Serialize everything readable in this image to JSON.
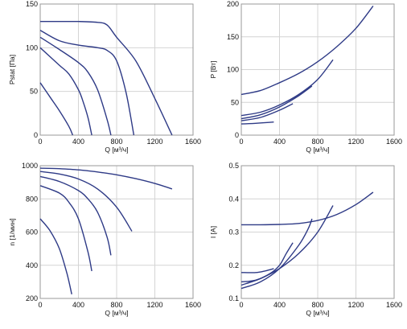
{
  "chart_data": [
    {
      "type": "line",
      "xlabel": "Q [м³/ч]",
      "ylabel": "Pstat [Па]",
      "xlim": [
        0,
        1600
      ],
      "ylim": [
        0,
        150
      ],
      "xticks": [
        0,
        400,
        800,
        1200,
        1600
      ],
      "yticks": [
        0,
        50,
        100,
        150
      ],
      "grid": true,
      "series": [
        {
          "x": [
            0,
            200,
            400,
            600,
            700,
            800,
            1000,
            1200,
            1380
          ],
          "y": [
            130,
            130,
            130,
            129,
            126,
            112,
            85,
            42,
            0
          ]
        },
        {
          "x": [
            0,
            200,
            400,
            600,
            700,
            800,
            900,
            980
          ],
          "y": [
            120,
            108,
            103,
            100,
            97,
            85,
            48,
            0
          ]
        },
        {
          "x": [
            0,
            200,
            400,
            500,
            600,
            700,
            740
          ],
          "y": [
            112,
            98,
            83,
            72,
            52,
            18,
            0
          ]
        },
        {
          "x": [
            0,
            200,
            300,
            400,
            450,
            500,
            540
          ],
          "y": [
            100,
            80,
            70,
            52,
            38,
            20,
            0
          ]
        },
        {
          "x": [
            0,
            100,
            200,
            300,
            340
          ],
          "y": [
            60,
            44,
            28,
            10,
            0
          ]
        }
      ]
    },
    {
      "type": "line",
      "xlabel": "Q [м³/ч]",
      "ylabel": "P [Вт]",
      "xlim": [
        0,
        1600
      ],
      "ylim": [
        0,
        200
      ],
      "xticks": [
        0,
        400,
        800,
        1200,
        1600
      ],
      "yticks": [
        0,
        50,
        100,
        150,
        200
      ],
      "grid": true,
      "series": [
        {
          "x": [
            0,
            200,
            400,
            600,
            800,
            1000,
            1200,
            1380
          ],
          "y": [
            62,
            68,
            80,
            94,
            112,
            135,
            163,
            197
          ]
        },
        {
          "x": [
            0,
            200,
            400,
            600,
            800,
            960
          ],
          "y": [
            30,
            35,
            46,
            62,
            85,
            115
          ]
        },
        {
          "x": [
            0,
            200,
            400,
            600,
            740
          ],
          "y": [
            25,
            31,
            43,
            60,
            75
          ]
        },
        {
          "x": [
            0,
            200,
            400,
            540
          ],
          "y": [
            22,
            27,
            38,
            48
          ]
        },
        {
          "x": [
            0,
            150,
            340
          ],
          "y": [
            17,
            18,
            20
          ]
        }
      ]
    },
    {
      "type": "line",
      "xlabel": "Q [м³/ч]",
      "ylabel": "n [1/мин]",
      "xlim": [
        0,
        1600
      ],
      "ylim": [
        200,
        1000
      ],
      "xticks": [
        0,
        400,
        800,
        1200,
        1600
      ],
      "yticks": [
        200,
        400,
        600,
        800,
        1000
      ],
      "grid": true,
      "series": [
        {
          "x": [
            0,
            200,
            400,
            600,
            800,
            1000,
            1200,
            1380
          ],
          "y": [
            985,
            982,
            975,
            962,
            945,
            922,
            893,
            860
          ]
        },
        {
          "x": [
            0,
            200,
            400,
            600,
            800,
            960
          ],
          "y": [
            965,
            950,
            920,
            860,
            750,
            605
          ]
        },
        {
          "x": [
            0,
            200,
            400,
            500,
            600,
            700,
            740
          ],
          "y": [
            935,
            905,
            850,
            800,
            720,
            570,
            460
          ]
        },
        {
          "x": [
            0,
            200,
            300,
            400,
            500,
            540
          ],
          "y": [
            880,
            835,
            780,
            680,
            480,
            365
          ]
        },
        {
          "x": [
            0,
            100,
            200,
            280,
            330
          ],
          "y": [
            680,
            610,
            500,
            350,
            225
          ]
        }
      ]
    },
    {
      "type": "line",
      "xlabel": "Q [м³/ч]",
      "ylabel": "I [A]",
      "xlim": [
        0,
        1600
      ],
      "ylim": [
        0.1,
        0.5
      ],
      "xticks": [
        0,
        400,
        800,
        1200,
        1600
      ],
      "yticks": [
        0.1,
        0.2,
        0.3,
        0.4,
        0.5
      ],
      "grid": true,
      "series": [
        {
          "x": [
            0,
            200,
            400,
            600,
            800,
            1000,
            1200,
            1380
          ],
          "y": [
            0.322,
            0.322,
            0.323,
            0.326,
            0.335,
            0.353,
            0.383,
            0.42
          ]
        },
        {
          "x": [
            0,
            200,
            400,
            600,
            800,
            960
          ],
          "y": [
            0.14,
            0.16,
            0.19,
            0.235,
            0.3,
            0.38
          ]
        },
        {
          "x": [
            0,
            200,
            400,
            600,
            700,
            740
          ],
          "y": [
            0.13,
            0.15,
            0.19,
            0.26,
            0.31,
            0.34
          ]
        },
        {
          "x": [
            0,
            150,
            300,
            400,
            470,
            540
          ],
          "y": [
            0.15,
            0.155,
            0.175,
            0.2,
            0.235,
            0.268
          ]
        },
        {
          "x": [
            0,
            150,
            250,
            340
          ],
          "y": [
            0.178,
            0.178,
            0.183,
            0.19
          ]
        }
      ]
    }
  ],
  "colors": {
    "curve": "#2e3a86",
    "grid": "#d4d4d4",
    "frame": "#9a9a9a"
  }
}
